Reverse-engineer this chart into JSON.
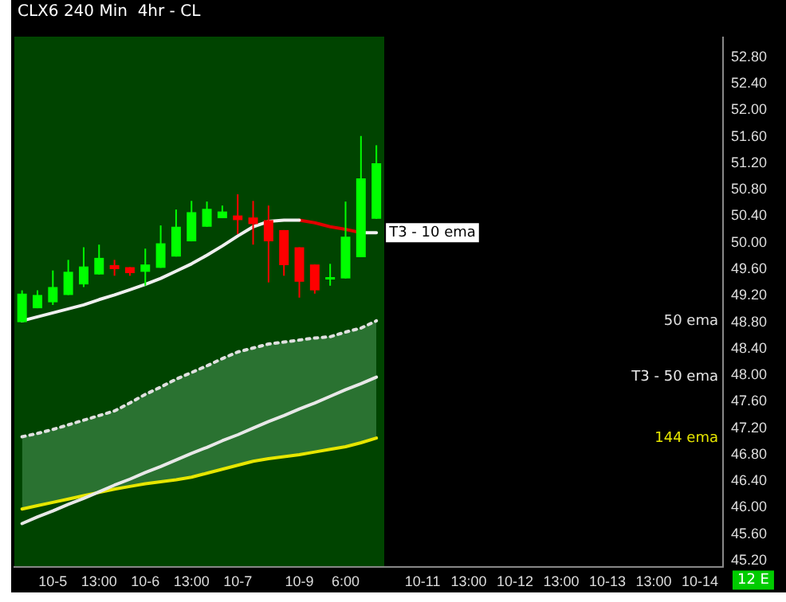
{
  "chart_data": {
    "type": "candlestick",
    "title": "CLX6 240 Min  4hr - CL",
    "categories": [
      null,
      null,
      "10-5",
      null,
      null,
      "13:00",
      null,
      null,
      "10-6",
      null,
      null,
      "13:00",
      null,
      null,
      "10-7",
      null,
      null,
      null,
      "10-9",
      null,
      null,
      "6:00",
      null,
      null,
      null,
      null,
      "10-11",
      null,
      null,
      "13:00",
      null,
      null,
      "10-12",
      null,
      null,
      "13:00",
      null,
      null,
      "10-13",
      null,
      null,
      "13:00",
      null,
      null,
      "10-14",
      null
    ],
    "ohlc": [
      [
        48.8,
        49.28,
        48.8,
        49.23
      ],
      [
        49.01,
        49.28,
        49.01,
        49.21
      ],
      [
        49.1,
        49.58,
        49.06,
        49.33
      ],
      [
        49.21,
        49.74,
        49.21,
        49.56
      ],
      [
        49.37,
        49.93,
        49.33,
        49.64
      ],
      [
        49.52,
        49.97,
        49.52,
        49.77
      ],
      [
        49.66,
        49.74,
        49.5,
        49.6
      ],
      [
        49.63,
        49.63,
        49.5,
        49.54
      ],
      [
        49.56,
        49.91,
        49.35,
        49.67
      ],
      [
        49.62,
        50.26,
        49.62,
        49.99
      ],
      [
        49.79,
        50.5,
        49.79,
        50.24
      ],
      [
        50.02,
        50.63,
        50.02,
        50.46
      ],
      [
        50.24,
        50.62,
        50.24,
        50.51
      ],
      [
        50.37,
        50.56,
        50.37,
        50.47
      ],
      [
        50.41,
        50.73,
        50.13,
        50.34
      ],
      [
        50.38,
        50.63,
        49.97,
        50.28
      ],
      [
        50.34,
        50.56,
        49.4,
        50.02
      ],
      [
        50.19,
        50.19,
        49.5,
        49.66
      ],
      [
        49.93,
        49.93,
        49.17,
        49.41
      ],
      [
        49.67,
        49.67,
        49.23,
        49.28
      ],
      [
        49.46,
        49.68,
        49.35,
        49.48
      ],
      [
        49.46,
        50.62,
        49.46,
        50.09
      ],
      [
        49.78,
        51.61,
        49.78,
        50.97
      ],
      [
        50.36,
        51.47,
        50.36,
        51.2
      ],
      null,
      null,
      null,
      null,
      null,
      null,
      null,
      null,
      null,
      null,
      null,
      null,
      null,
      null,
      null,
      null,
      null,
      null,
      null,
      null,
      null,
      null
    ],
    "colors": [
      "#00ff00",
      "#00ff00",
      "#00ff00",
      "#00ff00",
      "#00ff00",
      "#00ff00",
      "#ff0000",
      "#ff0000",
      "#00ff00",
      "#00ff00",
      "#00ff00",
      "#00ff00",
      "#00ff00",
      "#00ff00",
      "#ff0000",
      "#ff0000",
      "#ff0000",
      "#ff0000",
      "#ff0000",
      "#ff0000",
      "#00ff00",
      "#00ff00",
      "#00ff00",
      "#00ff00",
      null,
      null,
      null,
      null,
      null,
      null,
      null,
      null,
      null,
      null,
      null,
      null,
      null,
      null,
      null,
      null,
      null,
      null,
      null,
      null,
      null,
      null
    ],
    "series": [
      {
        "name": "T3 - 10 ema",
        "type": "line",
        "color": "#f0f0f0",
        "values": [
          48.82,
          48.88,
          48.94,
          49.0,
          49.06,
          49.14,
          49.21,
          49.29,
          49.37,
          49.46,
          49.57,
          49.68,
          49.81,
          49.95,
          50.1,
          50.24,
          50.32,
          50.34,
          50.34,
          null,
          null,
          null,
          50.15,
          50.15,
          null,
          null,
          null,
          null,
          null,
          null,
          null,
          null,
          null,
          null,
          null,
          null,
          null,
          null,
          null,
          null,
          null,
          null,
          null,
          null,
          null,
          null
        ]
      },
      {
        "type": "line",
        "color": "#e00000",
        "values": [
          null,
          null,
          null,
          null,
          null,
          null,
          null,
          null,
          null,
          null,
          null,
          null,
          null,
          null,
          null,
          null,
          null,
          null,
          50.34,
          50.3,
          50.24,
          50.2,
          50.15,
          null,
          null,
          null,
          null,
          null,
          null,
          null,
          null,
          null,
          null,
          null,
          null,
          null,
          null,
          null,
          null,
          null,
          null,
          null,
          null,
          null,
          null,
          null
        ]
      },
      {
        "name": "50 ema",
        "type": "line",
        "line_style": "dotted",
        "color": "#e0e0e0",
        "values": [
          47.07,
          47.12,
          47.18,
          47.25,
          47.32,
          47.39,
          47.46,
          47.58,
          47.71,
          47.82,
          47.94,
          48.04,
          48.14,
          48.25,
          48.35,
          48.41,
          48.47,
          48.5,
          48.53,
          48.56,
          48.58,
          48.65,
          48.71,
          48.82,
          null,
          null,
          null,
          null,
          null,
          null,
          null,
          null,
          null,
          null,
          null,
          null,
          null,
          null,
          null,
          null,
          null,
          null,
          null,
          null,
          null,
          null
        ],
        "upper": [
          47.07,
          47.12,
          47.18,
          47.25,
          47.32,
          47.39,
          47.46,
          47.58,
          47.71,
          47.82,
          47.94,
          48.04,
          48.14,
          48.25,
          48.35,
          48.41,
          48.47,
          48.5,
          48.53,
          48.56,
          48.58,
          48.65,
          48.71,
          48.82,
          null,
          null,
          null,
          null,
          null,
          null,
          null,
          null,
          null,
          null,
          null,
          null,
          null,
          null,
          null,
          null,
          null,
          null,
          null,
          null,
          null,
          null
        ],
        "lower": [
          45.98,
          46.03,
          46.08,
          46.13,
          46.18,
          46.23,
          46.28,
          46.32,
          46.36,
          46.39,
          46.42,
          46.46,
          46.52,
          46.58,
          46.64,
          46.7,
          46.74,
          46.77,
          46.8,
          46.84,
          46.88,
          46.92,
          46.98,
          47.05,
          null,
          null,
          null,
          null,
          null,
          null,
          null,
          null,
          null,
          null,
          null,
          null,
          null,
          null,
          null,
          null,
          null,
          null,
          null,
          null,
          null,
          null
        ]
      },
      {
        "name": "T3 - 50 ema",
        "type": "line",
        "color": "#e8e8e8",
        "values": [
          45.76,
          45.86,
          45.95,
          46.05,
          46.14,
          46.24,
          46.34,
          46.43,
          46.53,
          46.62,
          46.72,
          46.82,
          46.91,
          47.01,
          47.1,
          47.2,
          47.3,
          47.39,
          47.49,
          47.58,
          47.68,
          47.78,
          47.87,
          47.97,
          null,
          null,
          null,
          null,
          null,
          null,
          null,
          null,
          null,
          null,
          null,
          null,
          null,
          null,
          null,
          null,
          null,
          null,
          null,
          null,
          null,
          null
        ]
      },
      {
        "name": "144 ema",
        "type": "line",
        "color": "#e6e600",
        "values": [
          45.98,
          46.03,
          46.08,
          46.13,
          46.18,
          46.23,
          46.28,
          46.32,
          46.36,
          46.39,
          46.42,
          46.46,
          46.52,
          46.58,
          46.64,
          46.7,
          46.74,
          46.77,
          46.8,
          46.84,
          46.88,
          46.92,
          46.98,
          47.05,
          null,
          null,
          null,
          null,
          null,
          null,
          null,
          null,
          null,
          null,
          null,
          null,
          null,
          null,
          null,
          null,
          null,
          null,
          null,
          null,
          null,
          null
        ]
      }
    ],
    "ylim": [
      45.1,
      53.1
    ],
    "yticks": [
      {
        "value": 45.2,
        "label": "45.20"
      },
      {
        "value": 45.6,
        "label": "45.60"
      },
      {
        "value": 46.0,
        "label": "46.00"
      },
      {
        "value": 46.4,
        "label": "46.40"
      },
      {
        "value": 46.8,
        "label": "46.80"
      },
      {
        "value": 47.2,
        "label": "47.20"
      },
      {
        "value": 47.6,
        "label": "47.60"
      },
      {
        "value": 48.0,
        "label": "48.00"
      },
      {
        "value": 48.4,
        "label": "48.40"
      },
      {
        "value": 48.8,
        "label": "48.80"
      },
      {
        "value": 49.2,
        "label": "49.20"
      },
      {
        "value": 49.6,
        "label": "49.60"
      },
      {
        "value": 50.0,
        "label": "50.00"
      },
      {
        "value": 50.4,
        "label": "50.40"
      },
      {
        "value": 50.8,
        "label": "50.80"
      },
      {
        "value": 51.2,
        "label": "51.20"
      },
      {
        "value": 51.6,
        "label": "51.60"
      },
      {
        "value": 52.0,
        "label": "52.00"
      },
      {
        "value": 52.4,
        "label": "52.40"
      },
      {
        "value": 52.8,
        "label": "52.80"
      }
    ],
    "grid": false,
    "legend": false,
    "marker": "none",
    "annotations": [
      "12 E"
    ]
  }
}
